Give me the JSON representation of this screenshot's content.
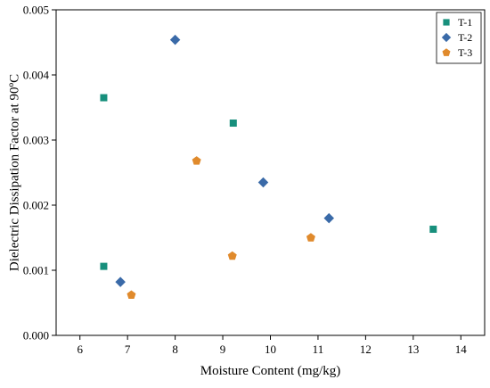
{
  "chart_data": {
    "type": "scatter",
    "title": "",
    "xlabel": "Moisture Content (mg/kg)",
    "ylabel": "Dielectric Dissipation Factor at 90ºC",
    "xlim": [
      5.5,
      14.5
    ],
    "ylim": [
      0.0,
      0.005
    ],
    "xticks": [
      "6",
      "7",
      "8",
      "9",
      "10",
      "11",
      "12",
      "13",
      "14"
    ],
    "xtick_values": [
      6,
      7,
      8,
      9,
      10,
      11,
      12,
      13,
      14
    ],
    "yticks": [
      "0.000",
      "0.001",
      "0.002",
      "0.003",
      "0.004",
      "0.005"
    ],
    "ytick_values": [
      0.0,
      0.001,
      0.002,
      0.003,
      0.004,
      0.005
    ],
    "grid": false,
    "legend_position": "top-right",
    "series": [
      {
        "name": "T-1",
        "marker": "square",
        "color": "#178f7c",
        "points": [
          {
            "x": 6.5,
            "y": 0.00365
          },
          {
            "x": 6.5,
            "y": 0.00106
          },
          {
            "x": 9.22,
            "y": 0.00326
          },
          {
            "x": 13.42,
            "y": 0.00163
          }
        ]
      },
      {
        "name": "T-2",
        "marker": "diamond",
        "color": "#3a6aa8",
        "points": [
          {
            "x": 8.0,
            "y": 0.00454
          },
          {
            "x": 9.85,
            "y": 0.00235
          },
          {
            "x": 11.23,
            "y": 0.0018
          },
          {
            "x": 6.85,
            "y": 0.00082
          }
        ]
      },
      {
        "name": "T-3",
        "marker": "pentagon",
        "color": "#e08a2c",
        "points": [
          {
            "x": 8.45,
            "y": 0.00268
          },
          {
            "x": 10.85,
            "y": 0.0015
          },
          {
            "x": 9.2,
            "y": 0.00122
          },
          {
            "x": 7.08,
            "y": 0.00062
          }
        ]
      }
    ]
  }
}
